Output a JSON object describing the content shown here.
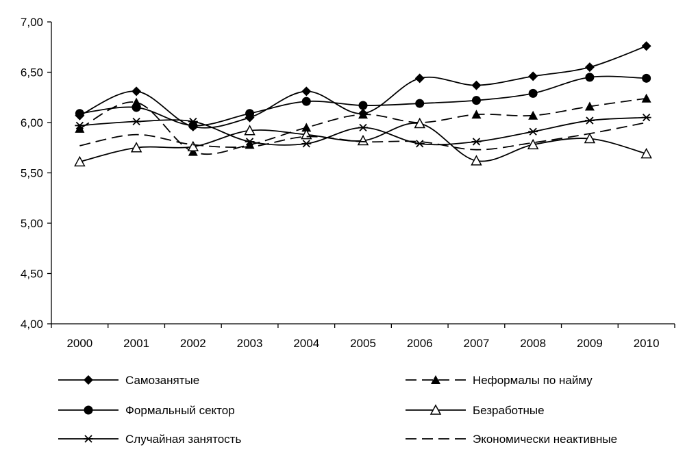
{
  "chart_data": {
    "type": "line",
    "title": "",
    "xlabel": "",
    "ylabel": "",
    "x": [
      "2000",
      "2001",
      "2002",
      "2003",
      "2004",
      "2005",
      "2006",
      "2007",
      "2008",
      "2009",
      "2010"
    ],
    "ylim": [
      4.0,
      7.0
    ],
    "yticks": [
      "4,00",
      "4,50",
      "5,00",
      "5,50",
      "6,00",
      "6,50",
      "7,00"
    ],
    "grid": false,
    "legend_position": "bottom",
    "series": [
      {
        "name": "Самозанятые",
        "style": "solid",
        "marker": "diamond",
        "values": [
          6.07,
          6.31,
          5.96,
          6.05,
          6.31,
          6.09,
          6.44,
          6.37,
          6.46,
          6.55,
          6.76
        ]
      },
      {
        "name": "Неформалы по найму",
        "style": "dashed",
        "marker": "triangle-filled",
        "values": [
          5.94,
          6.2,
          5.71,
          5.78,
          5.95,
          6.08,
          6.0,
          6.08,
          6.07,
          6.16,
          6.24
        ]
      },
      {
        "name": "Формальный сектор",
        "style": "solid",
        "marker": "circle",
        "values": [
          6.09,
          6.15,
          5.97,
          6.09,
          6.21,
          6.17,
          6.19,
          6.22,
          6.29,
          6.45,
          6.44
        ]
      },
      {
        "name": "Безработные",
        "style": "solid",
        "marker": "triangle-open",
        "values": [
          5.61,
          5.75,
          5.76,
          5.92,
          5.88,
          5.82,
          5.99,
          5.62,
          5.78,
          5.84,
          5.69
        ]
      },
      {
        "name": "Случайная занятость",
        "style": "solid",
        "marker": "asterisk",
        "values": [
          5.97,
          6.01,
          6.01,
          5.81,
          5.79,
          5.95,
          5.79,
          5.81,
          5.91,
          6.02,
          6.05
        ]
      },
      {
        "name": "Экономически неактивные",
        "style": "dashed",
        "marker": "none",
        "values": [
          5.77,
          5.88,
          5.78,
          5.76,
          5.86,
          5.81,
          5.81,
          5.73,
          5.8,
          5.89,
          6.0
        ]
      }
    ]
  }
}
